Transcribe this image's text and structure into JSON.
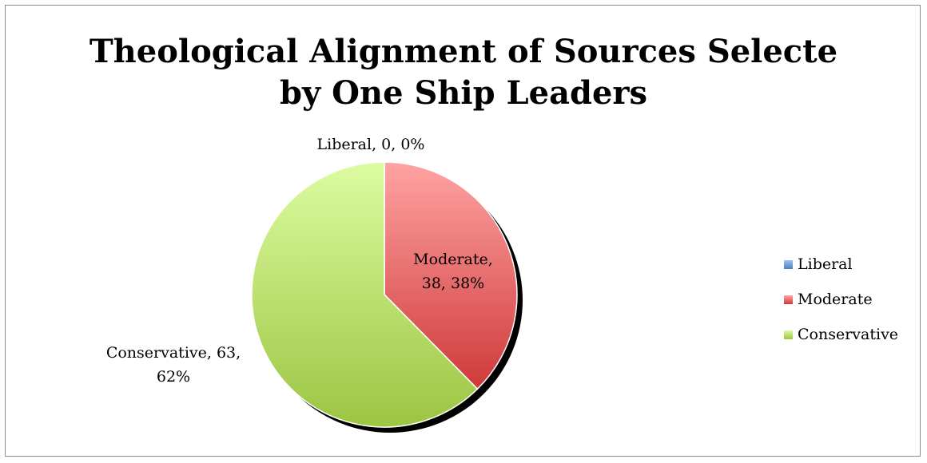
{
  "chart_data": {
    "type": "pie",
    "title_lines": [
      "Theological Alignment of Sources Selecte",
      "by One Ship Leaders"
    ],
    "slices": [
      {
        "name": "Liberal",
        "value": 0,
        "percent_label": "0%",
        "color": "#4f81bd",
        "data_label": "Liberal, 0, 0%"
      },
      {
        "name": "Moderate",
        "value": 38,
        "percent_label": "38%",
        "color": "#e06666",
        "data_label_lines": [
          "Moderate,",
          "38, 38%"
        ]
      },
      {
        "name": "Conservative",
        "value": 63,
        "percent_label": "62%",
        "color": "#a9cf5a",
        "data_label_lines": [
          "Conservative, 63,",
          "62%"
        ]
      }
    ],
    "legend_placement": "right",
    "legend": [
      "Liberal",
      "Moderate",
      "Conservative"
    ]
  }
}
